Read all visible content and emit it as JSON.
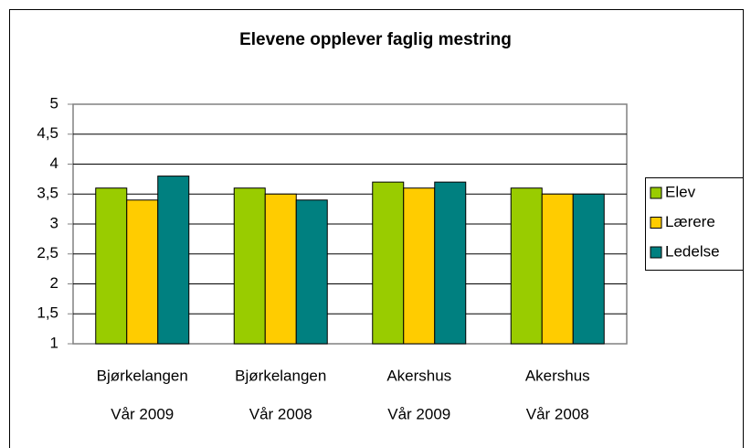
{
  "chart_data": {
    "type": "bar",
    "title": "Elevene opplever faglig mestring",
    "categories": [
      [
        "Bjørkelangen",
        "Vår 2009"
      ],
      [
        "Bjørkelangen",
        "Vår 2008"
      ],
      [
        "Akershus",
        "Vår 2009"
      ],
      [
        "Akershus",
        "Vår 2008"
      ]
    ],
    "series": [
      {
        "name": "Elev",
        "color": "#99cc00",
        "values": [
          3.6,
          3.6,
          3.7,
          3.6
        ]
      },
      {
        "name": "Lærere",
        "color": "#ffcc00",
        "values": [
          3.4,
          3.5,
          3.6,
          3.5
        ]
      },
      {
        "name": "Ledelse",
        "color": "#008080",
        "values": [
          3.8,
          3.4,
          3.7,
          3.5
        ]
      }
    ],
    "ylim": [
      1,
      5
    ],
    "yticks": [
      1,
      {
        "value": 1.5,
        "label": "1,5"
      },
      2,
      {
        "value": 2.5,
        "label": "2,5"
      },
      3,
      {
        "value": 3.5,
        "label": "3,5"
      },
      4,
      {
        "value": 4.5,
        "label": "4,5"
      },
      5
    ],
    "grid": true,
    "legend": "right"
  }
}
